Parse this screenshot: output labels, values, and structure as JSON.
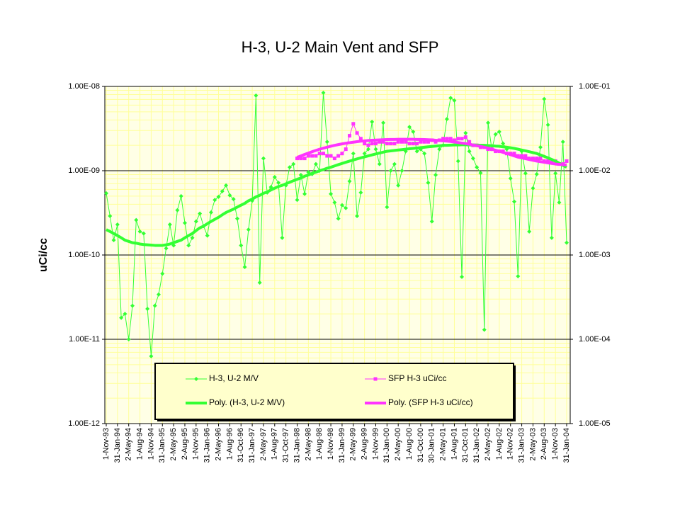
{
  "chart_data": {
    "type": "line",
    "title": "H-3, U-2 Main Vent and SFP",
    "y_label": "uCi/cc",
    "yscale": "log",
    "grid": true,
    "ylim": [
      1e-12,
      1e-08
    ],
    "yticks": [
      {
        "value": 1e-12,
        "label": "1.00E-12"
      },
      {
        "value": 1e-11,
        "label": "1.00E-11"
      },
      {
        "value": 1e-10,
        "label": "1.00E-10"
      },
      {
        "value": 1e-09,
        "label": "1.00E-09"
      },
      {
        "value": 1e-08,
        "label": "1.00E-08"
      }
    ],
    "y2lim": [
      1e-05,
      0.1
    ],
    "y2ticks": [
      {
        "value": 1e-05,
        "label": "1.00E-05"
      },
      {
        "value": 0.0001,
        "label": "1.00E-04"
      },
      {
        "value": 0.001,
        "label": "1.00E-03"
      },
      {
        "value": 0.01,
        "label": "1.00E-02"
      },
      {
        "value": 0.1,
        "label": "1.00E-01"
      }
    ],
    "categories": [
      "1-Nov-93",
      null,
      null,
      "31-Jan-94",
      null,
      null,
      "2-May-94",
      null,
      null,
      "1-Aug-94",
      null,
      null,
      "1-Nov-94",
      null,
      null,
      "31-Jan-95",
      null,
      null,
      "2-May-95",
      null,
      null,
      "2-Aug-95",
      null,
      null,
      "1-Nov-95",
      null,
      null,
      "31-Jan-96",
      null,
      null,
      "2-May-96",
      null,
      null,
      "1-Aug-96",
      null,
      null,
      "31-Oct-96",
      null,
      null,
      "31-Jan-97",
      null,
      null,
      "2-May-97",
      null,
      null,
      "1-Aug-97",
      null,
      null,
      "31-Oct-97",
      null,
      null,
      "31-Jan-98",
      null,
      null,
      "2-May-98",
      null,
      null,
      "1-Aug-98",
      null,
      null,
      "1-Nov-98",
      null,
      null,
      "31-Jan-99",
      null,
      null,
      "2-May-99",
      null,
      null,
      "2-Aug-99",
      null,
      null,
      "1-Nov-99",
      null,
      null,
      "31-Jan-00",
      null,
      null,
      "2-May-00",
      null,
      null,
      "1-Aug-00",
      null,
      null,
      "31-Oct-00",
      null,
      null,
      "30-Jan-01",
      null,
      null,
      "2-May-01",
      null,
      null,
      "1-Aug-01",
      null,
      null,
      "31-Oct-01",
      null,
      null,
      "31-Jan-02",
      null,
      null,
      "2-May-02",
      null,
      null,
      "1-Aug-02",
      null,
      null,
      "1-Nov-02",
      null,
      null,
      "31-Jan-03",
      null,
      null,
      "2-May-03",
      null,
      null,
      "2-Aug-03",
      null,
      null,
      "1-Nov-03",
      null,
      null,
      "31-Jan-04"
    ],
    "series": [
      {
        "name": "H-3, U-2 M/V",
        "color": "#33ff33",
        "marker": "diamond",
        "width": 1,
        "axis": "y",
        "values": [
          5.4e-10,
          2.9e-10,
          1.5e-10,
          2.3e-10,
          1.8e-11,
          2e-11,
          1e-11,
          2.5e-11,
          2.6e-10,
          1.9e-10,
          1.8e-10,
          2.3e-11,
          6.3e-12,
          2.5e-11,
          3.4e-11,
          6e-11,
          1.2e-10,
          2.3e-10,
          1.3e-10,
          3.4e-10,
          5e-10,
          2.4e-10,
          1.3e-10,
          1.6e-10,
          2.5e-10,
          3.1e-10,
          2.2e-10,
          1.7e-10,
          3.2e-10,
          4.5e-10,
          4.9e-10,
          5.7e-10,
          6.7e-10,
          5.1e-10,
          4.6e-10,
          2.7e-10,
          1.3e-10,
          7.2e-11,
          2e-10,
          4.4e-10,
          7.8e-09,
          4.7e-11,
          1.4e-09,
          5.5e-10,
          6.4e-10,
          8.4e-10,
          7.2e-10,
          1.6e-10,
          6.7e-10,
          1.1e-09,
          1.2e-09,
          4.5e-10,
          8.9e-10,
          5.3e-10,
          9.6e-10,
          9.1e-10,
          1.2e-09,
          1e-09,
          8.4e-09,
          2.2e-09,
          5.3e-10,
          4.2e-10,
          2.7e-10,
          3.9e-10,
          3.6e-10,
          7.5e-10,
          1.6e-09,
          2.9e-10,
          5.5e-10,
          1.6e-09,
          1.8e-09,
          3.8e-09,
          1.8e-09,
          1.2e-09,
          3.7e-09,
          3.7e-10,
          1e-09,
          1.2e-09,
          6.7e-10,
          1e-09,
          1.7e-09,
          3.3e-09,
          2.9e-09,
          1.7e-09,
          1.8e-09,
          1.6e-09,
          7.2e-10,
          2.5e-10,
          8.9e-10,
          1.8e-09,
          2e-09,
          4.1e-09,
          7.3e-09,
          6.8e-09,
          1.3e-09,
          5.5e-11,
          2.8e-09,
          1.7e-09,
          1.4e-09,
          1.1e-09,
          9.4e-10,
          1.3e-11,
          3.7e-09,
          1.8e-09,
          2.7e-09,
          2.9e-09,
          2.1e-09,
          1.8e-09,
          8.1e-10,
          4.3e-10,
          5.6e-11,
          1.7e-09,
          9.3e-10,
          1.9e-10,
          6.2e-10,
          9.1e-10,
          1.9e-09,
          7.1e-09,
          3.5e-09,
          1.6e-10,
          9.3e-10,
          4.2e-10,
          2.2e-09,
          1.4e-10
        ]
      },
      {
        "name": "SFP H-3 uCi/cc",
        "color": "#ff33ff",
        "marker": "square",
        "width": 1,
        "axis": "y2",
        "values": [
          null,
          null,
          null,
          null,
          null,
          null,
          null,
          null,
          null,
          null,
          null,
          null,
          null,
          null,
          null,
          null,
          null,
          null,
          null,
          null,
          null,
          null,
          null,
          null,
          null,
          null,
          null,
          null,
          null,
          null,
          null,
          null,
          null,
          null,
          null,
          null,
          null,
          null,
          null,
          null,
          null,
          null,
          null,
          null,
          null,
          null,
          null,
          null,
          null,
          null,
          null,
          0.014,
          0.014,
          0.014,
          0.015,
          0.015,
          0.015,
          0.016,
          0.016,
          0.015,
          0.015,
          0.014,
          0.015,
          0.016,
          0.018,
          0.026,
          0.036,
          0.028,
          0.024,
          0.021,
          0.02,
          0.021,
          0.021,
          0.022,
          0.022,
          0.021,
          0.021,
          0.021,
          0.022,
          0.022,
          0.022,
          0.021,
          0.021,
          0.021,
          0.022,
          0.022,
          0.022,
          0.023,
          0.022,
          0.023,
          0.024,
          0.024,
          0.024,
          0.023,
          0.024,
          0.024,
          0.025,
          0.022,
          0.02,
          0.02,
          0.019,
          0.019,
          0.018,
          0.018,
          0.017,
          0.017,
          0.017,
          0.016,
          0.016,
          0.016,
          0.015,
          0.015,
          0.015,
          0.014,
          0.014,
          0.014,
          0.014,
          0.013,
          0.013,
          0.013,
          0.013,
          0.012,
          0.012,
          0.013
        ]
      },
      {
        "name": "Poly. (H-3, U-2 M/V)",
        "color": "#33ff33",
        "width": 4,
        "axis": "y",
        "values": [
          2e-10,
          1.9e-10,
          1.8e-10,
          1.7e-10,
          1.6e-10,
          1.5e-10,
          1.45e-10,
          1.4e-10,
          1.38e-10,
          1.35e-10,
          1.33e-10,
          1.32e-10,
          1.31e-10,
          1.3e-10,
          1.3e-10,
          1.3e-10,
          1.32e-10,
          1.35e-10,
          1.4e-10,
          1.45e-10,
          1.5e-10,
          1.6e-10,
          1.7e-10,
          1.8e-10,
          1.95e-10,
          2.1e-10,
          2.2e-10,
          2.35e-10,
          2.5e-10,
          2.65e-10,
          2.8e-10,
          3e-10,
          3.2e-10,
          3.35e-10,
          3.5e-10,
          3.7e-10,
          3.9e-10,
          4.1e-10,
          4.4e-10,
          4.6e-10,
          4.9e-10,
          5.1e-10,
          5.4e-10,
          5.6e-10,
          5.9e-10,
          6.2e-10,
          6.5e-10,
          6.7e-10,
          7e-10,
          7.3e-10,
          7.6e-10,
          7.9e-10,
          8.2e-10,
          8.6e-10,
          8.9e-10,
          9.3e-10,
          9.6e-10,
          1e-09,
          1.03e-09,
          1.07e-09,
          1.1e-09,
          1.14e-09,
          1.18e-09,
          1.22e-09,
          1.26e-09,
          1.3e-09,
          1.34e-09,
          1.38e-09,
          1.42e-09,
          1.46e-09,
          1.5e-09,
          1.54e-09,
          1.58e-09,
          1.62e-09,
          1.66e-09,
          1.7e-09,
          1.72e-09,
          1.74e-09,
          1.76e-09,
          1.78e-09,
          1.8e-09,
          1.82e-09,
          1.84e-09,
          1.86e-09,
          1.88e-09,
          1.9e-09,
          1.92e-09,
          1.94e-09,
          1.96e-09,
          1.98e-09,
          2e-09,
          2e-09,
          2.01e-09,
          2.02e-09,
          2.02e-09,
          2.03e-09,
          2.03e-09,
          2.02e-09,
          2.02e-09,
          2.01e-09,
          2e-09,
          2e-09,
          1.99e-09,
          1.98e-09,
          1.96e-09,
          1.95e-09,
          1.92e-09,
          1.9e-09,
          1.87e-09,
          1.84e-09,
          1.8e-09,
          1.76e-09,
          1.72e-09,
          1.68e-09,
          1.64e-09,
          1.6e-09,
          1.54e-09,
          1.48e-09,
          1.42e-09,
          1.36e-09,
          1.3e-09,
          1.23e-09,
          1.16e-09,
          1.1e-09
        ]
      },
      {
        "name": "Poly. (SFP H-3 uCi/cc)",
        "color": "#ff33ff",
        "width": 4,
        "axis": "y2",
        "values": [
          null,
          null,
          null,
          null,
          null,
          null,
          null,
          null,
          null,
          null,
          null,
          null,
          null,
          null,
          null,
          null,
          null,
          null,
          null,
          null,
          null,
          null,
          null,
          null,
          null,
          null,
          null,
          null,
          null,
          null,
          null,
          null,
          null,
          null,
          null,
          null,
          null,
          null,
          null,
          null,
          null,
          null,
          null,
          null,
          null,
          null,
          null,
          null,
          null,
          null,
          null,
          0.0144,
          0.015,
          0.0156,
          0.0162,
          0.0168,
          0.0174,
          0.018,
          0.0185,
          0.019,
          0.0195,
          0.02,
          0.0204,
          0.0208,
          0.0212,
          0.0215,
          0.0218,
          0.0221,
          0.0224,
          0.0226,
          0.0228,
          0.023,
          0.0231,
          0.0232,
          0.0233,
          0.0234,
          0.0235,
          0.0235,
          0.0236,
          0.0236,
          0.0236,
          0.0236,
          0.0236,
          0.0235,
          0.0235,
          0.0234,
          0.0233,
          0.0232,
          0.023,
          0.0228,
          0.0226,
          0.0224,
          0.0222,
          0.0219,
          0.0216,
          0.0213,
          0.021,
          0.0206,
          0.0202,
          0.0198,
          0.0194,
          0.019,
          0.0185,
          0.018,
          0.0175,
          0.017,
          0.0165,
          0.016,
          0.0155,
          0.015,
          0.0145,
          0.0142,
          0.0139,
          0.0136,
          0.0133,
          0.013,
          0.0128,
          0.0126,
          0.0124,
          0.0122,
          0.012,
          0.0119,
          0.0118,
          0.0117
        ]
      }
    ]
  }
}
